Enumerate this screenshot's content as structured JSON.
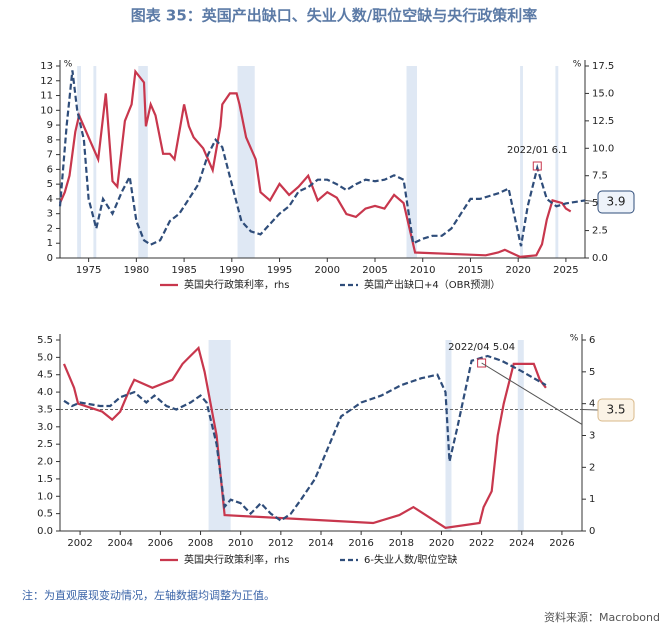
{
  "title": "图表 35：英国产出缺口、失业人数/职位空缺与央行政策利率",
  "note": "注：为直观展现变动情况，左轴数据均调整为正值。",
  "source": "资料来源：Macrobond",
  "chart_data": [
    {
      "type": "line",
      "ylabel": "%",
      "y2label": "%",
      "xlim": [
        1972,
        2027
      ],
      "xticks": [
        1975,
        1980,
        1985,
        1990,
        1995,
        2000,
        2005,
        2010,
        2015,
        2020,
        2025
      ],
      "ylim": [
        0,
        13
      ],
      "yticks": [
        0,
        1,
        2,
        3,
        4,
        5,
        6,
        7,
        8,
        9,
        10,
        11,
        12,
        13
      ],
      "y2lim": [
        0,
        17.5
      ],
      "y2ticks": [
        {
          "value": 0,
          "label": "0.0"
        },
        {
          "value": 2.5,
          "label": "2.5"
        },
        {
          "value": 5,
          "label": "5.0"
        },
        {
          "value": 7.5,
          "label": "7.5"
        },
        {
          "value": 10,
          "label": "10.0"
        },
        {
          "value": 12.5,
          "label": "12.5"
        },
        {
          "value": 15,
          "label": "15.0"
        },
        {
          "value": 17.5,
          "label": "17.5"
        }
      ],
      "shaded_periods": [
        [
          1973.8,
          1974.2
        ],
        [
          1975.5,
          1975.8
        ],
        [
          1980.2,
          1981.2
        ],
        [
          1990.6,
          1992.4
        ],
        [
          2008.3,
          2009.4
        ],
        [
          2020.2,
          2020.5
        ],
        [
          2023.9,
          2024.2
        ]
      ],
      "annotation": "2022/01  6.1",
      "series": [
        {
          "name": "英国央行政策利率，rhs",
          "color": "#c8374d",
          "axis": "y2",
          "dash": false,
          "x": [
            1972,
            1972.5,
            1973,
            1973.6,
            1974,
            1975,
            1975.5,
            1976,
            1976.8,
            1977.5,
            1978,
            1978.8,
            1979.5,
            1979.9,
            1980.8,
            1981,
            1981.5,
            1982,
            1982.8,
            1983.5,
            1984,
            1984.6,
            1985,
            1985.5,
            1986,
            1987,
            1987.5,
            1988,
            1988.8,
            1989,
            1989.8,
            1990.5,
            1990.8,
            1991.5,
            1992.5,
            1993,
            1994,
            1995,
            1996,
            1997,
            1998,
            1999,
            2000,
            2001,
            2002,
            2003,
            2004,
            2005,
            2006,
            2007,
            2008,
            2008.8,
            2009.2,
            2016.6,
            2017.9,
            2018.6,
            2020.2,
            2021.9,
            2022.5,
            2023,
            2023.6,
            2024.6,
            2025,
            2025.5
          ],
          "values": [
            5,
            6,
            7.5,
            11.5,
            13,
            11,
            10,
            9,
            15,
            7,
            6.5,
            12.5,
            14,
            17,
            16,
            12,
            14,
            13,
            9.5,
            9.5,
            9,
            12,
            14,
            12,
            11,
            10,
            9,
            8,
            12,
            14,
            15,
            15,
            14,
            11,
            9,
            6,
            5.25,
            6.75,
            5.75,
            6.5,
            7.5,
            5.25,
            6,
            5.5,
            4,
            3.75,
            4.5,
            4.75,
            4.5,
            5.75,
            5,
            2,
            0.5,
            0.25,
            0.5,
            0.75,
            0.1,
            0.25,
            1.25,
            3.5,
            5.25,
            5,
            4.5,
            4.25
          ]
        },
        {
          "name": "英国产出缺口+4（OBR预测）",
          "color": "#2f4d7a",
          "axis": "y",
          "dash": true,
          "x": [
            1972,
            1972.7,
            1973.3,
            1973.8,
            1974.5,
            1975,
            1975.8,
            1976.5,
            1977.5,
            1978.5,
            1979.3,
            1980,
            1980.8,
            1981.5,
            1982.5,
            1983.5,
            1984.5,
            1985.5,
            1986.5,
            1987.5,
            1988.3,
            1989,
            1990,
            1991,
            1992,
            1993,
            1994,
            1995,
            1996,
            1997,
            1998,
            1999,
            2000,
            2001,
            2002,
            2003,
            2004,
            2005,
            2006,
            2007,
            2008,
            2009,
            2010,
            2011,
            2012,
            2013,
            2014,
            2015,
            2016,
            2017,
            2018,
            2019,
            2020.3,
            2021,
            2022,
            2023,
            2024,
            2025,
            2026,
            2027
          ],
          "values": [
            3.5,
            9,
            12.7,
            10,
            8,
            4,
            2,
            4,
            3,
            4.5,
            5.5,
            2.5,
            1.2,
            0.9,
            1.2,
            2.5,
            3,
            4,
            5,
            7,
            8,
            7.5,
            5,
            2.5,
            1.8,
            1.6,
            2.3,
            3,
            3.5,
            4.5,
            4.8,
            5.3,
            5.3,
            5,
            4.6,
            5,
            5.3,
            5.2,
            5.3,
            5.6,
            5.3,
            1,
            1.3,
            1.5,
            1.5,
            2,
            3,
            4,
            4,
            4.2,
            4.4,
            4.7,
            0.8,
            3.5,
            6.1,
            4,
            3.5,
            3.7,
            3.8,
            3.9
          ]
        }
      ]
    },
    {
      "type": "line",
      "y2label": "%",
      "xlim": [
        2001,
        2027
      ],
      "xticks": [
        2002,
        2004,
        2006,
        2008,
        2010,
        2012,
        2014,
        2016,
        2018,
        2020,
        2022,
        2024,
        2026
      ],
      "ylim": [
        0,
        5.5
      ],
      "yticks": [
        {
          "value": 0,
          "label": "0.0"
        },
        {
          "value": 0.5,
          "label": "0.5"
        },
        {
          "value": 1,
          "label": "1.0"
        },
        {
          "value": 1.5,
          "label": "1.5"
        },
        {
          "value": 2,
          "label": "2.0"
        },
        {
          "value": 2.5,
          "label": "2.5"
        },
        {
          "value": 3,
          "label": "3.0"
        },
        {
          "value": 3.5,
          "label": "3.5"
        },
        {
          "value": 4,
          "label": "4.0"
        },
        {
          "value": 4.5,
          "label": "4.5"
        },
        {
          "value": 5,
          "label": "5.0"
        },
        {
          "value": 5.5,
          "label": "5.5"
        }
      ],
      "y2lim": [
        0,
        6
      ],
      "y2ticks": [
        0,
        1,
        2,
        3,
        4,
        5,
        6
      ],
      "shaded_periods": [
        [
          2008.4,
          2009.5
        ],
        [
          2020.2,
          2020.5
        ],
        [
          2023.8,
          2024.1
        ]
      ],
      "reference_line": 3.5,
      "annotation": "2022/04  5.04",
      "series": [
        {
          "name": "英国央行政策利率，rhs",
          "color": "#c8374d",
          "axis": "y2",
          "dash": false,
          "x": [
            2001.2,
            2001.7,
            2001.9,
            2003.1,
            2003.6,
            2004,
            2004.5,
            2004.7,
            2005.6,
            2006.6,
            2007.1,
            2007.5,
            2007.9,
            2008.2,
            2008.8,
            2009.2,
            2016.6,
            2017.9,
            2018.6,
            2020.2,
            2021.9,
            2022.1,
            2022.5,
            2022.8,
            2023.1,
            2023.6,
            2024.6,
            2024.9,
            2025.2
          ],
          "values": [
            5.25,
            4.5,
            4,
            3.75,
            3.5,
            3.75,
            4.5,
            4.75,
            4.5,
            4.75,
            5.25,
            5.5,
            5.75,
            5,
            3,
            0.5,
            0.25,
            0.5,
            0.75,
            0.1,
            0.25,
            0.75,
            1.25,
            3,
            4,
            5.25,
            5.25,
            4.75,
            4.5
          ]
        },
        {
          "name": "6-失业人数/职位空缺",
          "color": "#2f4d7a",
          "axis": "y",
          "dash": true,
          "x": [
            2001.2,
            2001.6,
            2002,
            2003,
            2003.5,
            2004,
            2004.7,
            2005.3,
            2005.7,
            2006.3,
            2006.8,
            2007.5,
            2008,
            2008.3,
            2008.8,
            2009.2,
            2009.5,
            2010,
            2010.5,
            2011,
            2011.5,
            2012,
            2012.5,
            2013,
            2013.7,
            2014.5,
            2015,
            2015.5,
            2016,
            2017,
            2018,
            2019,
            2019.8,
            2020.2,
            2020.4,
            2020.8,
            2021.5,
            2022.3,
            2023,
            2024,
            2025.2
          ],
          "values": [
            3.75,
            3.6,
            3.7,
            3.6,
            3.6,
            3.85,
            4,
            3.7,
            3.9,
            3.6,
            3.5,
            3.7,
            3.9,
            3.7,
            2.5,
            0.7,
            0.9,
            0.8,
            0.5,
            0.8,
            0.5,
            0.3,
            0.5,
            0.9,
            1.5,
            2.6,
            3.3,
            3.5,
            3.7,
            3.9,
            4.2,
            4.4,
            4.5,
            4,
            2,
            3,
            4.9,
            5.04,
            4.9,
            4.6,
            4.2
          ]
        }
      ]
    }
  ]
}
